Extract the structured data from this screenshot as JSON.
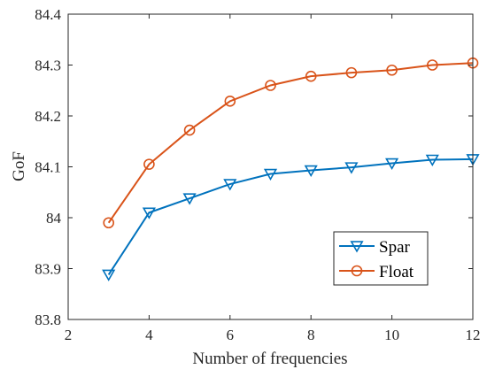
{
  "chart_data": {
    "type": "line",
    "title": "",
    "xlabel": "Number of frequencies",
    "ylabel": "GoF",
    "xlim": [
      2,
      12
    ],
    "ylim": [
      83.8,
      84.4
    ],
    "xticks": [
      2,
      4,
      6,
      8,
      10,
      12
    ],
    "yticks": [
      83.8,
      83.9,
      84,
      84.1,
      84.2,
      84.3,
      84.4
    ],
    "xtick_labels": [
      "2",
      "4",
      "6",
      "8",
      "10",
      "12"
    ],
    "ytick_labels": [
      "83.8",
      "83.9",
      "84",
      "84.1",
      "84.2",
      "84.3",
      "84.4"
    ],
    "grid": false,
    "legend_position": "bottom-right",
    "x": [
      3,
      4,
      5,
      6,
      7,
      8,
      9,
      10,
      11,
      12
    ],
    "series": [
      {
        "name": "Spar",
        "color": "#0072BD",
        "marker": "triangle-down",
        "values": [
          83.888,
          84.01,
          84.038,
          84.066,
          84.086,
          84.093,
          84.099,
          84.107,
          84.114,
          84.115
        ]
      },
      {
        "name": "Float",
        "color": "#D95319",
        "marker": "circle",
        "values": [
          83.99,
          84.105,
          84.172,
          84.229,
          84.26,
          84.278,
          84.285,
          84.29,
          84.3,
          84.304
        ]
      }
    ]
  }
}
